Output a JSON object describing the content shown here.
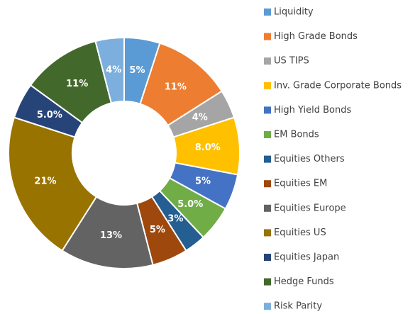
{
  "chart_data": {
    "type": "pie",
    "donut": true,
    "categories": [
      "Liquidity",
      "High Grade Bonds",
      "US TIPS",
      "Inv. Grade Corporate Bonds",
      "High Yield Bonds",
      "EM Bonds",
      "Equities Others",
      "Equities EM",
      "Equities Europe",
      "Equities US",
      "Equities Japan",
      "Hedge Funds",
      "Risk Parity"
    ],
    "values": [
      5,
      11,
      4,
      8,
      5,
      5,
      3,
      5,
      13,
      21,
      5,
      11,
      4
    ],
    "value_labels": [
      "5%",
      "11%",
      "4%",
      "8.0%",
      "5%",
      "5.0%",
      "3%",
      "5%",
      "13%",
      "21%",
      "5.0%",
      "11%",
      "4%"
    ],
    "colors": [
      "#5b9bd5",
      "#ed7d31",
      "#a5a5a5",
      "#ffc000",
      "#4472c4",
      "#70ad47",
      "#255e91",
      "#9e480e",
      "#636363",
      "#997300",
      "#264478",
      "#43682b",
      "#7cafdd"
    ],
    "legend": "right"
  }
}
